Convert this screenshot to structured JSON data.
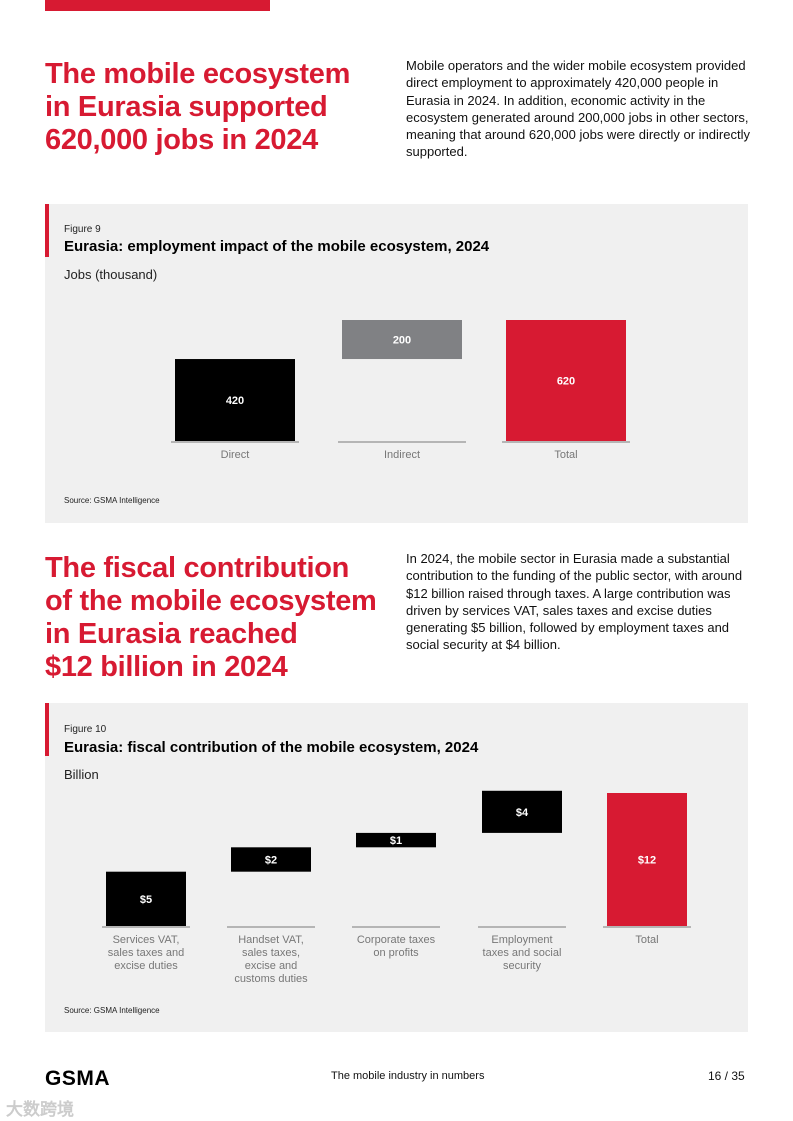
{
  "section1": {
    "headline": [
      "The mobile ecosystem",
      "in Eurasia supported",
      "620,000 jobs in 2024"
    ],
    "paragraph": "Mobile operators and the wider mobile ecosystem provided direct employment to approximately 420,000 people in Eurasia in 2024. In addition, economic activity in the ecosystem generated around 200,000 jobs in other sectors, meaning that around 620,000 jobs were directly or indirectly supported."
  },
  "figure9": {
    "number": "Figure 9",
    "title": "Eurasia: employment impact of the mobile ecosystem, 2024",
    "unit": "Jobs (thousand)",
    "source": "Source: GSMA Intelligence"
  },
  "section2": {
    "headline": [
      "The fiscal contribution",
      "of the mobile ecosystem",
      "in Eurasia reached",
      "$12 billion in 2024"
    ],
    "paragraph": "In 2024, the mobile sector in Eurasia made a substantial contribution to the funding of the public sector, with around $12 billion raised through taxes. A large contribution was driven by services VAT, sales taxes and excise duties generating $5 billion, followed by employment taxes and social security at $4 billion."
  },
  "figure10": {
    "number": "Figure 10",
    "title": "Eurasia: fiscal contribution of the mobile ecosystem, 2024",
    "unit": "Billion",
    "source": "Source: GSMA Intelligence"
  },
  "chart_data": [
    {
      "type": "bar",
      "subtype": "waterfall",
      "title": "Eurasia: employment impact of the mobile ecosystem, 2024",
      "ylabel": "Jobs (thousand)",
      "categories": [
        "Direct",
        "Indirect",
        "Total"
      ],
      "values": [
        420,
        200,
        620
      ],
      "labels": [
        "420",
        "200",
        "620"
      ],
      "bar_kinds": [
        "increment",
        "increment",
        "total"
      ],
      "colors": [
        "#000000",
        "#808184",
        "#d71a32"
      ],
      "ylim": [
        0,
        620
      ]
    },
    {
      "type": "bar",
      "subtype": "waterfall",
      "title": "Eurasia: fiscal contribution of the mobile ecosystem, 2024",
      "ylabel": "Billion",
      "categories": [
        [
          "Services VAT,",
          "sales taxes and",
          "excise duties"
        ],
        [
          "Handset VAT,",
          "sales taxes,",
          "excise and",
          "customs duties"
        ],
        [
          "Corporate taxes",
          "on profits"
        ],
        [
          "Employment",
          "taxes and social",
          "security"
        ],
        [
          "Total"
        ]
      ],
      "values": [
        4.9,
        2.2,
        1.3,
        3.8,
        12
      ],
      "labels": [
        "$5",
        "$2",
        "$1",
        "$4",
        "$12"
      ],
      "bar_kinds": [
        "increment",
        "increment",
        "increment",
        "increment",
        "total"
      ],
      "colors": [
        "#000000",
        "#000000",
        "#000000",
        "#000000",
        "#d71a32"
      ],
      "ylim": [
        0,
        12
      ]
    }
  ],
  "footer": {
    "logo": "GSMA",
    "title": "The mobile industry in numbers",
    "page": "16 / 35",
    "watermark": "大数跨境"
  }
}
